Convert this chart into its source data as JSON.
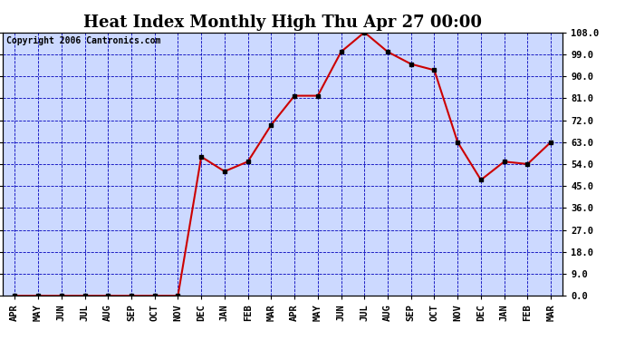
{
  "title": "Heat Index Monthly High Thu Apr 27 00:00",
  "copyright": "Copyright 2006 Cantronics.com",
  "x_labels": [
    "APR",
    "MAY",
    "JUN",
    "JUL",
    "AUG",
    "SEP",
    "OCT",
    "NOV",
    "DEC",
    "JAN",
    "FEB",
    "MAR",
    "APR",
    "MAY",
    "JUN",
    "JUL",
    "AUG",
    "SEP",
    "OCT",
    "NOV",
    "DEC",
    "JAN",
    "FEB",
    "MAR"
  ],
  "y_values": [
    0.0,
    0.0,
    0.0,
    0.0,
    0.0,
    0.0,
    0.0,
    0.0,
    57.0,
    51.0,
    55.0,
    70.0,
    82.0,
    82.0,
    100.0,
    108.0,
    100.0,
    95.0,
    92.5,
    63.0,
    47.5,
    55.0,
    54.0,
    63.0
  ],
  "y_min": 0.0,
  "y_max": 108.0,
  "y_ticks": [
    0.0,
    9.0,
    18.0,
    27.0,
    36.0,
    45.0,
    54.0,
    63.0,
    72.0,
    81.0,
    90.0,
    99.0,
    108.0
  ],
  "line_color": "#cc0000",
  "marker_color": "#000000",
  "bg_color": "#ccd9ff",
  "grid_color": "#0000bb",
  "outer_bg": "#ffffff",
  "title_fontsize": 13,
  "label_fontsize": 7.5,
  "copyright_fontsize": 7
}
